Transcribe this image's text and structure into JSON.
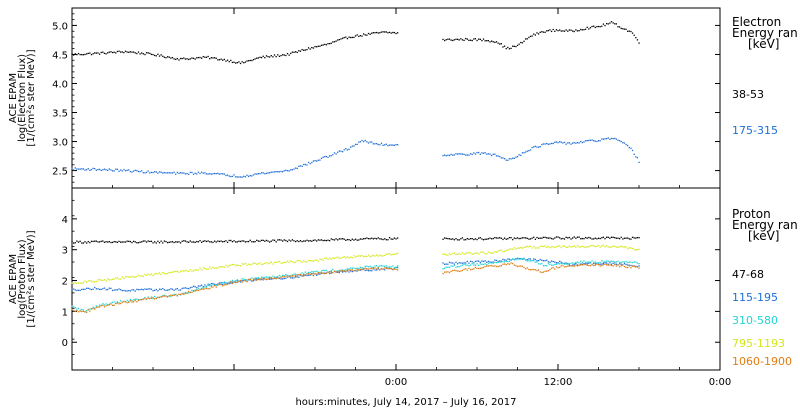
{
  "figure": {
    "xlabel": "hours:minutes, July 14, 2017 – July 16, 2017",
    "x_ticks": [
      {
        "hour": 0,
        "label": ""
      },
      {
        "hour": 12,
        "label": ""
      },
      {
        "hour": 24,
        "label": "0:00"
      },
      {
        "hour": 36,
        "label": "12:00"
      },
      {
        "hour": 48,
        "label": "0:00"
      }
    ]
  },
  "chart_data": [
    {
      "type": "scatter",
      "title": "",
      "ylabel_lines": [
        "ACE EPAM",
        "log(Electron Flux)",
        "[1/(cm²s ster MeV)]"
      ],
      "ylim": [
        2.2,
        5.3
      ],
      "y_ticks": [
        {
          "value": 2.5,
          "label": "2.5"
        },
        {
          "value": 3.0,
          "label": "3.0"
        },
        {
          "value": 3.5,
          "label": "3.5"
        },
        {
          "value": 4.0,
          "label": "4.0"
        },
        {
          "value": 4.5,
          "label": "4.5"
        },
        {
          "value": 5.0,
          "label": "5.0"
        }
      ],
      "xlim": [
        0,
        48
      ],
      "legend_title_lines": [
        "Electron",
        "Energy ran",
        "[keV]"
      ],
      "gap": [
        24.2,
        27.4
      ],
      "series": [
        {
          "name": "38-53",
          "color": "#000000",
          "anchors": [
            [
              0,
              4.5
            ],
            [
              2,
              4.52
            ],
            [
              4,
              4.55
            ],
            [
              6,
              4.5
            ],
            [
              8,
              4.42
            ],
            [
              10,
              4.45
            ],
            [
              11.5,
              4.4
            ],
            [
              12.5,
              4.35
            ],
            [
              14,
              4.45
            ],
            [
              16,
              4.5
            ],
            [
              17.5,
              4.6
            ],
            [
              19,
              4.68
            ],
            [
              20.5,
              4.8
            ],
            [
              22,
              4.85
            ],
            [
              23,
              4.88
            ],
            [
              24.2,
              4.87
            ],
            [
              27.4,
              4.75
            ],
            [
              29,
              4.76
            ],
            [
              30.5,
              4.75
            ],
            [
              31.5,
              4.72
            ],
            [
              32.2,
              4.6
            ],
            [
              33,
              4.65
            ],
            [
              34,
              4.82
            ],
            [
              35,
              4.9
            ],
            [
              36,
              4.92
            ],
            [
              37,
              4.9
            ],
            [
              38,
              4.95
            ],
            [
              39,
              4.98
            ],
            [
              40,
              5.05
            ],
            [
              40.8,
              4.95
            ],
            [
              41.5,
              4.88
            ],
            [
              42,
              4.7
            ]
          ]
        },
        {
          "name": "175-315",
          "color": "#1e6fd9",
          "anchors": [
            [
              0,
              2.53
            ],
            [
              2,
              2.52
            ],
            [
              4,
              2.5
            ],
            [
              6,
              2.47
            ],
            [
              8,
              2.45
            ],
            [
              10,
              2.46
            ],
            [
              11.5,
              2.42
            ],
            [
              12.5,
              2.4
            ],
            [
              14,
              2.45
            ],
            [
              16,
              2.5
            ],
            [
              17.5,
              2.62
            ],
            [
              19,
              2.75
            ],
            [
              20.5,
              2.88
            ],
            [
              21.5,
              3.02
            ],
            [
              22,
              2.98
            ],
            [
              23,
              2.95
            ],
            [
              24.2,
              2.94
            ],
            [
              27.4,
              2.77
            ],
            [
              29,
              2.78
            ],
            [
              30.5,
              2.8
            ],
            [
              31.5,
              2.76
            ],
            [
              32.2,
              2.68
            ],
            [
              33,
              2.75
            ],
            [
              34,
              2.88
            ],
            [
              35,
              2.95
            ],
            [
              36,
              2.98
            ],
            [
              37,
              2.97
            ],
            [
              38,
              3.0
            ],
            [
              39,
              3.02
            ],
            [
              40,
              3.06
            ],
            [
              40.8,
              2.98
            ],
            [
              41.5,
              2.85
            ],
            [
              42,
              2.66
            ]
          ]
        }
      ]
    },
    {
      "type": "scatter",
      "title": "",
      "ylabel_lines": [
        "ACE EPAM",
        "log(Proton Flux)",
        "[1/(cm²s ster MeV)]"
      ],
      "ylim": [
        -0.9,
        5.0
      ],
      "y_ticks": [
        {
          "value": 0,
          "label": "0"
        },
        {
          "value": 1,
          "label": "1"
        },
        {
          "value": 2,
          "label": "2"
        },
        {
          "value": 3,
          "label": "3"
        },
        {
          "value": 4,
          "label": "4"
        }
      ],
      "xlim": [
        0,
        48
      ],
      "legend_title_lines": [
        "Proton",
        "Energy ran",
        "[keV]"
      ],
      "gap": [
        24.2,
        27.4
      ],
      "series": [
        {
          "name": "47-68",
          "color": "#000000",
          "anchors": [
            [
              0,
              3.25
            ],
            [
              6,
              3.25
            ],
            [
              12,
              3.27
            ],
            [
              18,
              3.3
            ],
            [
              22,
              3.35
            ],
            [
              24.2,
              3.36
            ],
            [
              27.4,
              3.35
            ],
            [
              32,
              3.36
            ],
            [
              36,
              3.38
            ],
            [
              40,
              3.38
            ],
            [
              42,
              3.37
            ]
          ]
        },
        {
          "name": "115-195",
          "color": "#1e6fd9",
          "anchors": [
            [
              0,
              1.7
            ],
            [
              2,
              1.75
            ],
            [
              4,
              1.68
            ],
            [
              6,
              1.7
            ],
            [
              8,
              1.72
            ],
            [
              10,
              1.85
            ],
            [
              12,
              1.95
            ],
            [
              14,
              2.05
            ],
            [
              16,
              2.1
            ],
            [
              18,
              2.2
            ],
            [
              20,
              2.3
            ],
            [
              22,
              2.35
            ],
            [
              24.2,
              2.4
            ],
            [
              27.4,
              2.55
            ],
            [
              29,
              2.58
            ],
            [
              31,
              2.62
            ],
            [
              33,
              2.72
            ],
            [
              34,
              2.68
            ],
            [
              36,
              2.6
            ],
            [
              37,
              2.5
            ],
            [
              38,
              2.55
            ],
            [
              40,
              2.55
            ],
            [
              42,
              2.48
            ]
          ]
        },
        {
          "name": "310-580",
          "color": "#22d3d3",
          "anchors": [
            [
              0,
              1.15
            ],
            [
              1,
              1.0
            ],
            [
              2,
              1.2
            ],
            [
              4,
              1.35
            ],
            [
              6,
              1.45
            ],
            [
              8,
              1.55
            ],
            [
              10,
              1.8
            ],
            [
              12,
              2.0
            ],
            [
              14,
              2.1
            ],
            [
              16,
              2.18
            ],
            [
              18,
              2.28
            ],
            [
              20,
              2.35
            ],
            [
              22,
              2.45
            ],
            [
              24.2,
              2.45
            ],
            [
              27.4,
              2.4
            ],
            [
              29,
              2.5
            ],
            [
              31,
              2.55
            ],
            [
              33,
              2.7
            ],
            [
              34,
              2.65
            ],
            [
              35,
              2.5
            ],
            [
              36,
              2.55
            ],
            [
              38,
              2.6
            ],
            [
              40,
              2.62
            ],
            [
              42,
              2.58
            ]
          ]
        },
        {
          "name": "795-1193",
          "color": "#d4e616",
          "anchors": [
            [
              0,
              1.9
            ],
            [
              2,
              2.0
            ],
            [
              4,
              2.1
            ],
            [
              6,
              2.2
            ],
            [
              8,
              2.3
            ],
            [
              10,
              2.4
            ],
            [
              12,
              2.5
            ],
            [
              14,
              2.55
            ],
            [
              16,
              2.6
            ],
            [
              18,
              2.65
            ],
            [
              20,
              2.75
            ],
            [
              22,
              2.8
            ],
            [
              24.2,
              2.85
            ],
            [
              27.4,
              2.85
            ],
            [
              29,
              2.87
            ],
            [
              31,
              2.9
            ],
            [
              33,
              3.05
            ],
            [
              34,
              3.08
            ],
            [
              36,
              3.1
            ],
            [
              38,
              3.1
            ],
            [
              40,
              3.12
            ],
            [
              42,
              3.0
            ]
          ]
        },
        {
          "name": "1060-1900",
          "color": "#e07b10",
          "anchors": [
            [
              0,
              1.05
            ],
            [
              1,
              0.98
            ],
            [
              2,
              1.15
            ],
            [
              4,
              1.3
            ],
            [
              6,
              1.42
            ],
            [
              8,
              1.55
            ],
            [
              10,
              1.75
            ],
            [
              12,
              1.95
            ],
            [
              14,
              2.05
            ],
            [
              16,
              2.12
            ],
            [
              18,
              2.22
            ],
            [
              20,
              2.3
            ],
            [
              22,
              2.38
            ],
            [
              24.2,
              2.38
            ],
            [
              27.4,
              2.25
            ],
            [
              29,
              2.35
            ],
            [
              31,
              2.45
            ],
            [
              32.5,
              2.55
            ],
            [
              34,
              2.35
            ],
            [
              35,
              2.28
            ],
            [
              36,
              2.45
            ],
            [
              38,
              2.5
            ],
            [
              40,
              2.5
            ],
            [
              42,
              2.42
            ]
          ]
        }
      ]
    }
  ]
}
